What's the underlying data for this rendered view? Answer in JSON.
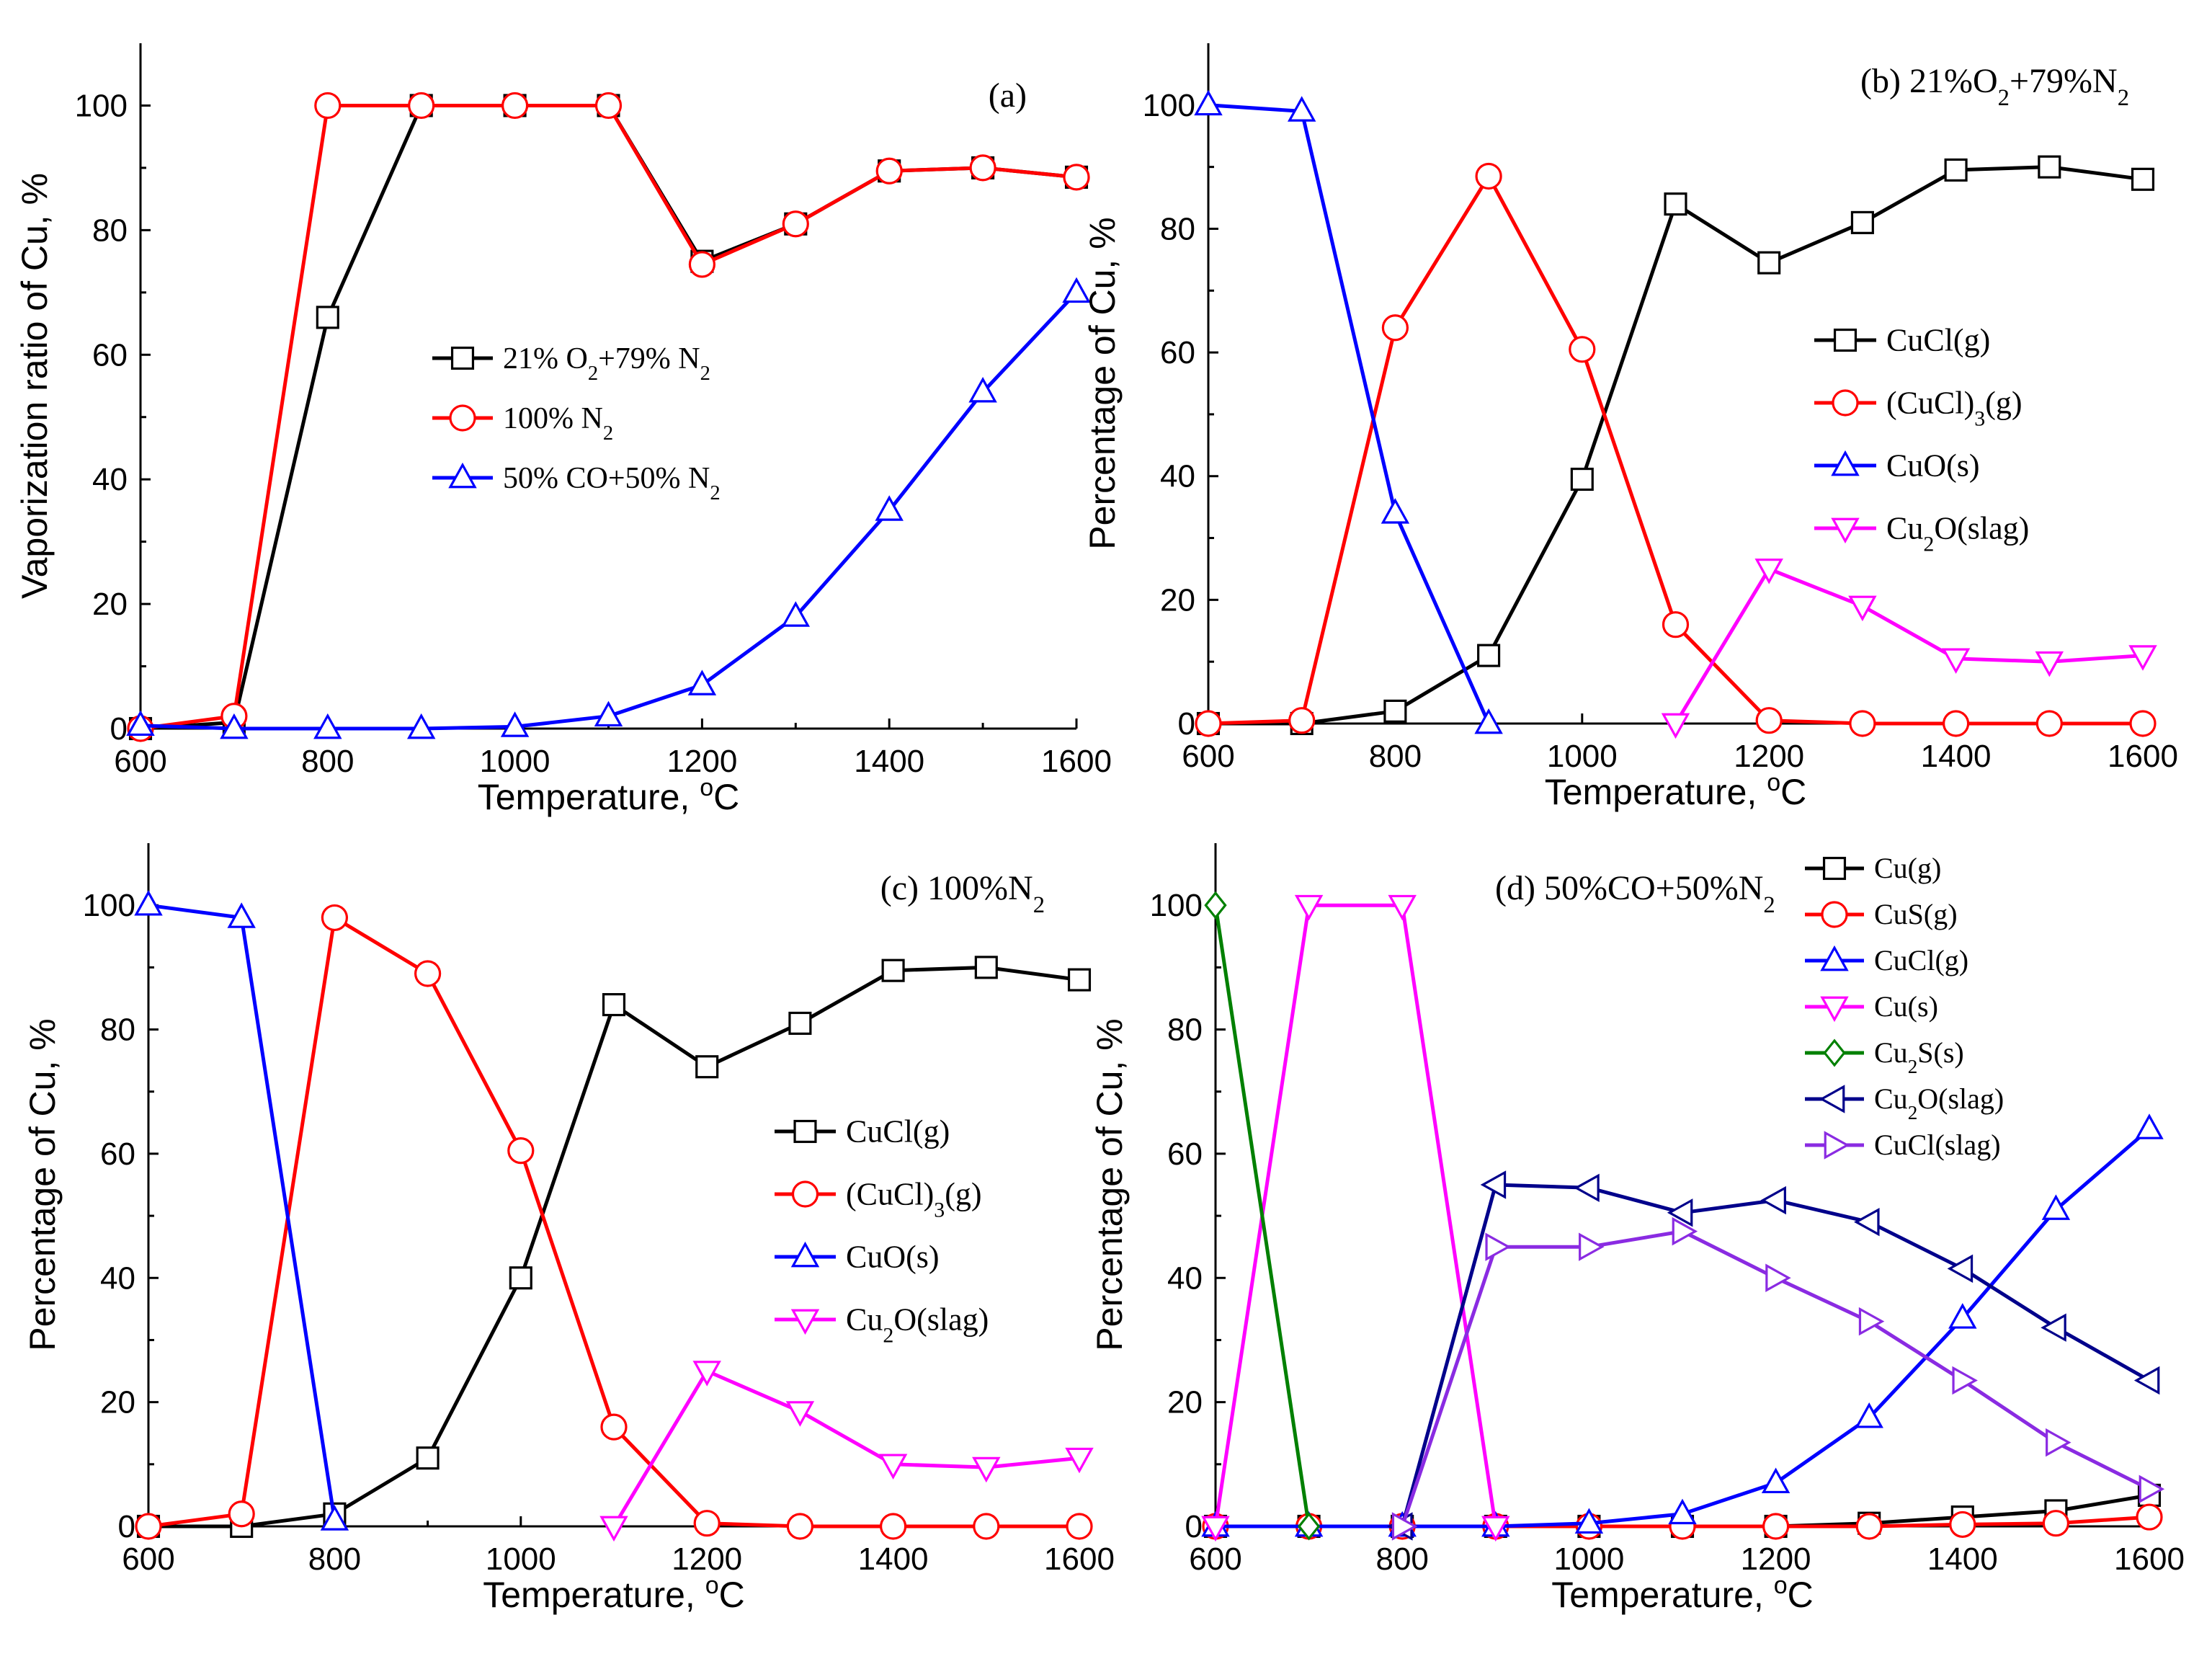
{
  "chart_data": [
    {
      "type": "line",
      "panel": "a",
      "panel_label": "(a)",
      "panel_label_parts": [
        {
          "t": "(a)",
          "s": ""
        }
      ],
      "xlabel": "Temperature, °C",
      "xlabel_parts": [
        {
          "t": "Temperature, ",
          "s": ""
        },
        {
          "t": "o",
          "s": "sup"
        },
        {
          "t": "C",
          "s": ""
        }
      ],
      "ylabel": "Vaporization ratio of Cu, %",
      "xlim": [
        600,
        1600
      ],
      "ylim": [
        0,
        110
      ],
      "xticks": [
        600,
        800,
        1000,
        1200,
        1400,
        1600
      ],
      "yticks": [
        0,
        20,
        40,
        60,
        80,
        100
      ],
      "legend_position": "center",
      "x": [
        600,
        700,
        800,
        900,
        1000,
        1100,
        1200,
        1300,
        1400,
        1500,
        1600
      ],
      "series": [
        {
          "name": "21% O2+79% N2",
          "name_parts": [
            {
              "t": "21% O",
              "s": ""
            },
            {
              "t": "2",
              "s": "sub"
            },
            {
              "t": "+79% N",
              "s": ""
            },
            {
              "t": "2",
              "s": "sub"
            }
          ],
          "color": "#000000",
          "marker": "square",
          "values": [
            0,
            1,
            66,
            100,
            100,
            100,
            75,
            81,
            89.5,
            90,
            88.5
          ]
        },
        {
          "name": "100% N2",
          "name_parts": [
            {
              "t": "100% N",
              "s": ""
            },
            {
              "t": "2",
              "s": "sub"
            }
          ],
          "color": "#ff0000",
          "marker": "circle",
          "values": [
            0,
            2,
            100,
            100,
            100,
            100,
            74.5,
            81,
            89.5,
            90,
            88.5
          ]
        },
        {
          "name": "50% CO+50% N2",
          "name_parts": [
            {
              "t": "50% CO+50% N",
              "s": ""
            },
            {
              "t": "2",
              "s": "sub"
            }
          ],
          "color": "#0000ff",
          "marker": "triangle-up",
          "values": [
            0.5,
            0,
            0,
            0,
            0.3,
            2,
            7,
            18,
            35,
            54,
            70
          ]
        }
      ]
    },
    {
      "type": "line",
      "panel": "b",
      "panel_label": "(b) 21%O2+79%N2",
      "panel_label_parts": [
        {
          "t": "(b) 21%O",
          "s": ""
        },
        {
          "t": "2",
          "s": "sub"
        },
        {
          "t": "+79%N",
          "s": ""
        },
        {
          "t": "2",
          "s": "sub"
        }
      ],
      "xlabel": "Temperature, °C",
      "xlabel_parts": [
        {
          "t": "Temperature, ",
          "s": ""
        },
        {
          "t": "o",
          "s": "sup"
        },
        {
          "t": "C",
          "s": ""
        }
      ],
      "ylabel": "Percentage of Cu, %",
      "xlim": [
        600,
        1600
      ],
      "ylim": [
        0,
        110
      ],
      "xticks": [
        600,
        800,
        1000,
        1200,
        1400,
        1600
      ],
      "yticks": [
        0,
        20,
        40,
        60,
        80,
        100
      ],
      "legend_position": "center-right",
      "series": [
        {
          "name": "CuCl(g)",
          "name_parts": [
            {
              "t": "CuCl(g)",
              "s": ""
            }
          ],
          "color": "#000000",
          "marker": "square",
          "x": [
            600,
            700,
            800,
            900,
            1000,
            1100,
            1200,
            1300,
            1400,
            1500,
            1600
          ],
          "values": [
            0,
            0,
            2,
            11,
            39.5,
            84,
            74.5,
            81,
            89.5,
            90,
            88
          ]
        },
        {
          "name": "(CuCl)3(g)",
          "name_parts": [
            {
              "t": "(CuCl)",
              "s": ""
            },
            {
              "t": "3",
              "s": "sub"
            },
            {
              "t": "(g)",
              "s": ""
            }
          ],
          "color": "#ff0000",
          "marker": "circle",
          "x": [
            600,
            700,
            800,
            900,
            1000,
            1100,
            1200,
            1300,
            1400,
            1500,
            1600
          ],
          "values": [
            0,
            0.5,
            64,
            88.5,
            60.5,
            16,
            0.5,
            0,
            0,
            0,
            0
          ]
        },
        {
          "name": "CuO(s)",
          "name_parts": [
            {
              "t": "CuO(s)",
              "s": ""
            }
          ],
          "color": "#0000ff",
          "marker": "triangle-up",
          "x": [
            600,
            700,
            800,
            900
          ],
          "values": [
            100,
            99,
            34,
            0
          ]
        },
        {
          "name": "Cu2O(slag)",
          "name_parts": [
            {
              "t": "Cu",
              "s": ""
            },
            {
              "t": "2",
              "s": "sub"
            },
            {
              "t": "O(slag)",
              "s": ""
            }
          ],
          "color": "#ff00ff",
          "marker": "triangle-down",
          "x": [
            1100,
            1200,
            1300,
            1400,
            1500,
            1600
          ],
          "values": [
            0,
            25,
            19,
            10.5,
            10,
            11
          ]
        }
      ]
    },
    {
      "type": "line",
      "panel": "c",
      "panel_label": "(c) 100%N2",
      "panel_label_parts": [
        {
          "t": "(c) 100%N",
          "s": ""
        },
        {
          "t": "2",
          "s": "sub"
        }
      ],
      "xlabel": "Temperature, °C",
      "xlabel_parts": [
        {
          "t": "Temperature, ",
          "s": ""
        },
        {
          "t": "o",
          "s": "sup"
        },
        {
          "t": "C",
          "s": ""
        }
      ],
      "ylabel": "Percentage of Cu, %",
      "xlim": [
        600,
        1600
      ],
      "ylim": [
        0,
        110
      ],
      "xticks": [
        600,
        800,
        1000,
        1200,
        1400,
        1600
      ],
      "yticks": [
        0,
        20,
        40,
        60,
        80,
        100
      ],
      "legend_position": "center-right",
      "series": [
        {
          "name": "CuCl(g)",
          "name_parts": [
            {
              "t": "CuCl(g)",
              "s": ""
            }
          ],
          "color": "#000000",
          "marker": "square",
          "x": [
            600,
            700,
            800,
            900,
            1000,
            1100,
            1200,
            1300,
            1400,
            1500,
            1600
          ],
          "values": [
            0,
            0,
            2,
            11,
            40,
            84,
            74,
            81,
            89.5,
            90,
            88
          ]
        },
        {
          "name": "(CuCl)3(g)",
          "name_parts": [
            {
              "t": "(CuCl)",
              "s": ""
            },
            {
              "t": "3",
              "s": "sub"
            },
            {
              "t": "(g)",
              "s": ""
            }
          ],
          "color": "#ff0000",
          "marker": "circle",
          "x": [
            600,
            700,
            800,
            900,
            1000,
            1100,
            1200,
            1300,
            1400,
            1500,
            1600
          ],
          "values": [
            0,
            2,
            98,
            89,
            60.5,
            16,
            0.5,
            0,
            0,
            0,
            0
          ]
        },
        {
          "name": "CuO(s)",
          "name_parts": [
            {
              "t": "CuO(s)",
              "s": ""
            }
          ],
          "color": "#0000ff",
          "marker": "triangle-up",
          "x": [
            600,
            700,
            800
          ],
          "values": [
            100,
            98,
            1
          ]
        },
        {
          "name": "Cu2O(slag)",
          "name_parts": [
            {
              "t": "Cu",
              "s": ""
            },
            {
              "t": "2",
              "s": "sub"
            },
            {
              "t": "O(slag)",
              "s": ""
            }
          ],
          "color": "#ff00ff",
          "marker": "triangle-down",
          "x": [
            1100,
            1200,
            1300,
            1400,
            1500,
            1600
          ],
          "values": [
            0,
            25,
            18.5,
            10,
            9.5,
            11
          ]
        }
      ]
    },
    {
      "type": "line",
      "panel": "d",
      "panel_label": "(d) 50%CO+50%N2",
      "panel_label_parts": [
        {
          "t": "(d) 50%CO+50%N",
          "s": ""
        },
        {
          "t": "2",
          "s": "sub"
        }
      ],
      "xlabel": "Temperature, °C",
      "xlabel_parts": [
        {
          "t": "Temperature, ",
          "s": ""
        },
        {
          "t": "o",
          "s": "sup"
        },
        {
          "t": "C",
          "s": ""
        }
      ],
      "ylabel": "Percentage of Cu, %",
      "xlim": [
        600,
        1600
      ],
      "ylim": [
        0,
        110
      ],
      "xticks": [
        600,
        800,
        1000,
        1200,
        1400,
        1600
      ],
      "yticks": [
        0,
        20,
        40,
        60,
        80,
        100
      ],
      "legend_position": "top-right",
      "series": [
        {
          "name": "Cu(g)",
          "name_parts": [
            {
              "t": "Cu(g)",
              "s": ""
            }
          ],
          "color": "#000000",
          "marker": "square",
          "x": [
            600,
            700,
            800,
            900,
            1000,
            1100,
            1200,
            1300,
            1400,
            1500,
            1600
          ],
          "values": [
            0,
            0,
            0,
            0,
            0,
            0,
            0,
            0.5,
            1.5,
            2.5,
            5
          ]
        },
        {
          "name": "CuS(g)",
          "name_parts": [
            {
              "t": "CuS(g)",
              "s": ""
            }
          ],
          "color": "#ff0000",
          "marker": "circle",
          "x": [
            600,
            700,
            800,
            900,
            1000,
            1100,
            1200,
            1300,
            1400,
            1500,
            1600
          ],
          "values": [
            0,
            0,
            0,
            0,
            0,
            0,
            0,
            0,
            0.3,
            0.5,
            1.5
          ]
        },
        {
          "name": "CuCl(g)",
          "name_parts": [
            {
              "t": "CuCl(g)",
              "s": ""
            }
          ],
          "color": "#0000ff",
          "marker": "triangle-up",
          "x": [
            600,
            700,
            800,
            900,
            1000,
            1100,
            1200,
            1300,
            1400,
            1500,
            1600
          ],
          "values": [
            0,
            0,
            0,
            0,
            0.5,
            2,
            7,
            17.5,
            33.5,
            51,
            64
          ]
        },
        {
          "name": "Cu(s)",
          "name_parts": [
            {
              "t": "Cu(s)",
              "s": ""
            }
          ],
          "color": "#ff00ff",
          "marker": "triangle-down",
          "x": [
            600,
            700,
            800,
            900
          ],
          "values": [
            0,
            100,
            100,
            0
          ]
        },
        {
          "name": "Cu2S(s)",
          "name_parts": [
            {
              "t": "Cu",
              "s": ""
            },
            {
              "t": "2",
              "s": "sub"
            },
            {
              "t": "S(s)",
              "s": ""
            }
          ],
          "color": "#008000",
          "marker": "diamond",
          "x": [
            600,
            700
          ],
          "values": [
            100,
            0
          ]
        },
        {
          "name": "Cu2O(slag)",
          "name_parts": [
            {
              "t": "Cu",
              "s": ""
            },
            {
              "t": "2",
              "s": "sub"
            },
            {
              "t": "O(slag)",
              "s": ""
            }
          ],
          "color": "#00008b",
          "marker": "triangle-left",
          "x": [
            800,
            900,
            1000,
            1100,
            1200,
            1300,
            1400,
            1500,
            1600
          ],
          "values": [
            0,
            55,
            54.5,
            50.5,
            52.5,
            49,
            41.5,
            32,
            23.5
          ]
        },
        {
          "name": "CuCl(slag)",
          "name_parts": [
            {
              "t": "CuCl(slag)",
              "s": ""
            }
          ],
          "color": "#8a2be2",
          "marker": "triangle-right",
          "x": [
            800,
            900,
            1000,
            1100,
            1200,
            1300,
            1400,
            1500,
            1600
          ],
          "values": [
            0,
            45,
            45,
            47.5,
            40,
            33,
            23.5,
            13.5,
            6
          ]
        }
      ]
    }
  ]
}
